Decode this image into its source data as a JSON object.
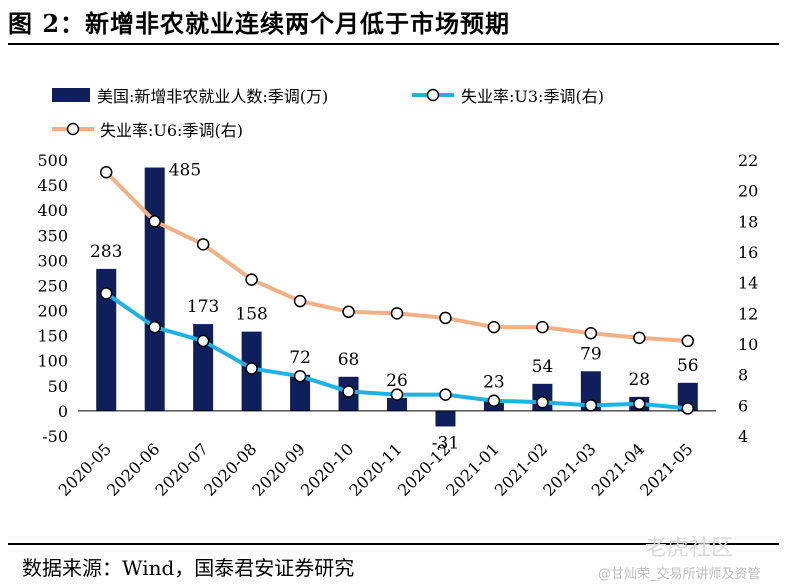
{
  "title": "图 2：新增非农就业连续两个月低于市场预期",
  "source": "数据来源：Wind，国泰君安证券研究",
  "watermark": {
    "brand": "老虎社区",
    "sub": "@甘灿荣_交易所讲师及资管"
  },
  "colors": {
    "bar": "#0f1f5c",
    "u3": "#1fb2e6",
    "u6": "#f2b083"
  },
  "chart_data": {
    "type": "bar",
    "categories": [
      "2020-05",
      "2020-06",
      "2020-07",
      "2020-08",
      "2020-09",
      "2020-10",
      "2020-11",
      "2020-12",
      "2021-01",
      "2021-02",
      "2021-03",
      "2021-04",
      "2021-05"
    ],
    "series": [
      {
        "name": "美国:新增非农就业人数:季调(万)",
        "type": "bar",
        "axis": "left",
        "values": [
          283,
          485,
          173,
          158,
          72,
          68,
          26,
          -31,
          23,
          54,
          79,
          28,
          56
        ]
      },
      {
        "name": "失业率:U3:季调(右)",
        "type": "line",
        "axis": "right",
        "values": [
          13.3,
          11.1,
          10.2,
          8.4,
          7.9,
          6.9,
          6.7,
          6.7,
          6.3,
          6.2,
          6.0,
          6.1,
          5.8
        ]
      },
      {
        "name": "失业率:U6:季调(右)",
        "type": "line",
        "axis": "right",
        "values": [
          21.2,
          18.0,
          16.5,
          14.2,
          12.8,
          12.1,
          12.0,
          11.7,
          11.1,
          11.1,
          10.7,
          10.4,
          10.2
        ]
      }
    ],
    "data_labels": [
      "283",
      "485",
      "173",
      "158",
      "72",
      "68",
      "26",
      "-31",
      "23",
      "54",
      "79",
      "28",
      "56"
    ],
    "ylim": [
      -50,
      500
    ],
    "y_ticks": [
      "500",
      "450",
      "400",
      "350",
      "300",
      "250",
      "200",
      "150",
      "100",
      "50",
      "0",
      "-50"
    ],
    "y2lim": [
      4,
      22
    ],
    "y2_ticks": [
      "22",
      "20",
      "18",
      "16",
      "14",
      "12",
      "10",
      "8",
      "6",
      "4"
    ],
    "grid": false,
    "legend": "top"
  }
}
